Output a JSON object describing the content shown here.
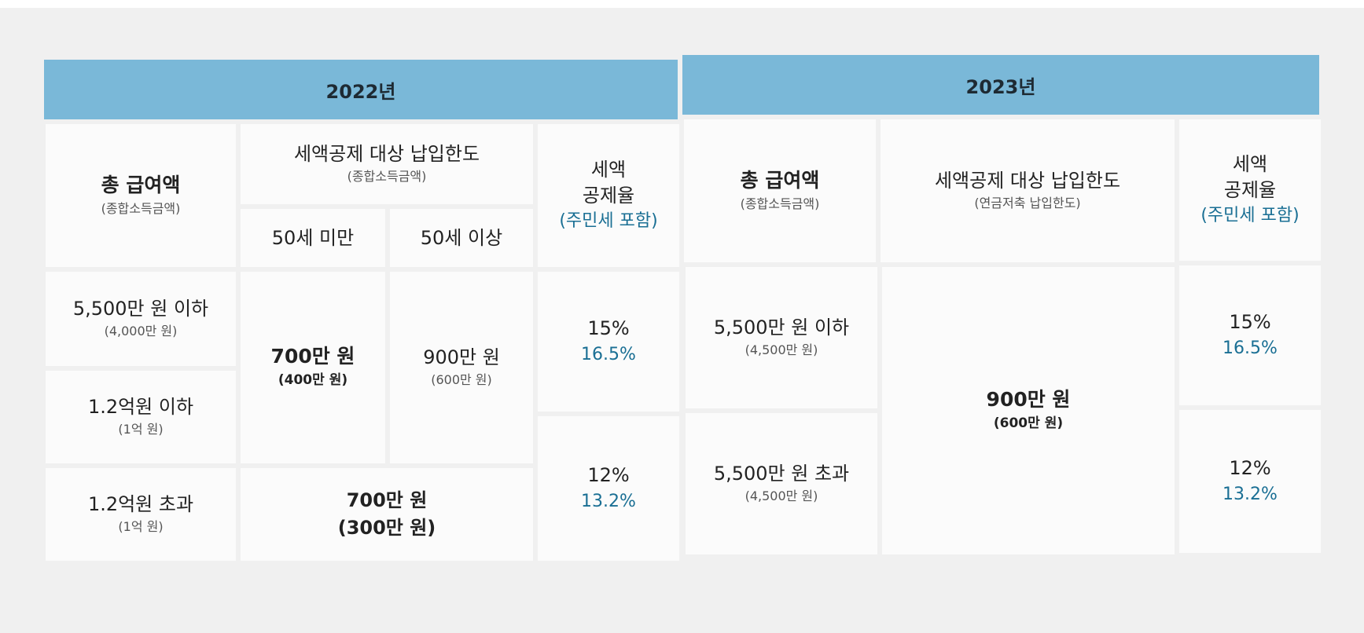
{
  "y2022": {
    "title": "2022년",
    "col_income": {
      "label": "총 급여액",
      "sub": "(종합소득금액)"
    },
    "col_limit": {
      "label": "세액공제 대상 납입한도",
      "sub": "(종합소득금액)",
      "under50": "50세 미만",
      "over50": "50세 이상"
    },
    "col_rate": {
      "line1": "세액",
      "line2": "공제율",
      "note": "(주민세 포함)"
    },
    "rows": [
      {
        "income": "5,500만 원 이하",
        "income_sub": "(4,000만 원)"
      },
      {
        "income": "1.2억원 이하",
        "income_sub": "(1억 원)"
      },
      {
        "income": "1.2억원 초과",
        "income_sub": "(1억 원)"
      }
    ],
    "limit_under50": {
      "value": "700만 원",
      "sub": "(400만 원)"
    },
    "limit_over50": {
      "value": "900만 원",
      "sub": "(600만 원)"
    },
    "limit_last": {
      "value": "700만 원",
      "sub": "(300만 원)"
    },
    "rate_a": {
      "pct": "15%",
      "with_tax": "16.5%"
    },
    "rate_b": {
      "pct": "12%",
      "with_tax": "13.2%"
    }
  },
  "y2023": {
    "title": "2023년",
    "col_income": {
      "label": "총 급여액",
      "sub": "(종합소득금액)"
    },
    "col_limit": {
      "label": "세액공제 대상 납입한도",
      "sub": "(연금저축 납입한도)"
    },
    "col_rate": {
      "line1": "세액",
      "line2": "공제율",
      "note": "(주민세 포함)"
    },
    "rows": [
      {
        "income": "5,500만 원 이하",
        "income_sub": "(4,500만 원)"
      },
      {
        "income": "5,500만 원 초과",
        "income_sub": "(4,500만 원)"
      }
    ],
    "limit": {
      "value": "900만 원",
      "sub": "(600만 원)"
    },
    "rate_a": {
      "pct": "15%",
      "with_tax": "16.5%"
    },
    "rate_b": {
      "pct": "12%",
      "with_tax": "13.2%"
    }
  },
  "colors": {
    "header_bg": "#7ab8d8",
    "accent_blue": "#1a6f94",
    "cell_bg": "#fbfbfb",
    "gap": "#f0f0f0"
  }
}
